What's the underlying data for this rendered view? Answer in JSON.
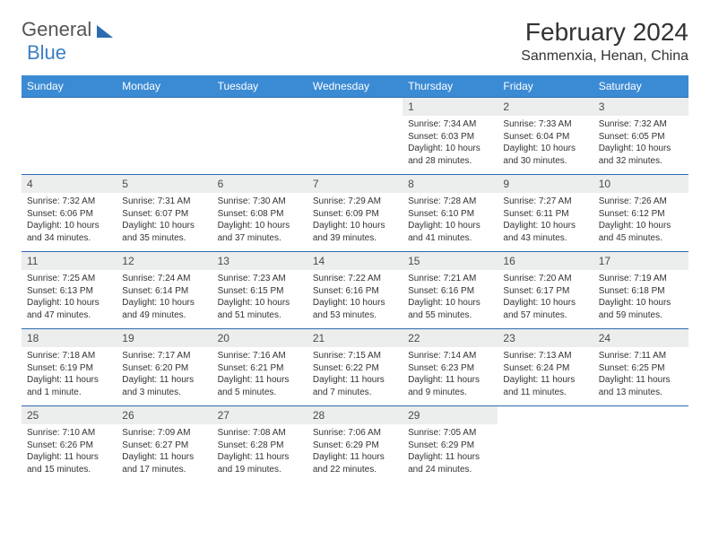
{
  "brand": {
    "part1": "General",
    "part2": "Blue"
  },
  "title": "February 2024",
  "location": "Sanmenxia, Henan, China",
  "colors": {
    "header_bg": "#3b8bd4",
    "header_text": "#ffffff",
    "daynum_bg": "#eceded",
    "border": "#2b6bb0",
    "text": "#333333"
  },
  "days_of_week": [
    "Sunday",
    "Monday",
    "Tuesday",
    "Wednesday",
    "Thursday",
    "Friday",
    "Saturday"
  ],
  "weeks": [
    {
      "nums": [
        "",
        "",
        "",
        "",
        "1",
        "2",
        "3"
      ],
      "details": [
        "",
        "",
        "",
        "",
        "Sunrise: 7:34 AM\nSunset: 6:03 PM\nDaylight: 10 hours and 28 minutes.",
        "Sunrise: 7:33 AM\nSunset: 6:04 PM\nDaylight: 10 hours and 30 minutes.",
        "Sunrise: 7:32 AM\nSunset: 6:05 PM\nDaylight: 10 hours and 32 minutes."
      ]
    },
    {
      "nums": [
        "4",
        "5",
        "6",
        "7",
        "8",
        "9",
        "10"
      ],
      "details": [
        "Sunrise: 7:32 AM\nSunset: 6:06 PM\nDaylight: 10 hours and 34 minutes.",
        "Sunrise: 7:31 AM\nSunset: 6:07 PM\nDaylight: 10 hours and 35 minutes.",
        "Sunrise: 7:30 AM\nSunset: 6:08 PM\nDaylight: 10 hours and 37 minutes.",
        "Sunrise: 7:29 AM\nSunset: 6:09 PM\nDaylight: 10 hours and 39 minutes.",
        "Sunrise: 7:28 AM\nSunset: 6:10 PM\nDaylight: 10 hours and 41 minutes.",
        "Sunrise: 7:27 AM\nSunset: 6:11 PM\nDaylight: 10 hours and 43 minutes.",
        "Sunrise: 7:26 AM\nSunset: 6:12 PM\nDaylight: 10 hours and 45 minutes."
      ]
    },
    {
      "nums": [
        "11",
        "12",
        "13",
        "14",
        "15",
        "16",
        "17"
      ],
      "details": [
        "Sunrise: 7:25 AM\nSunset: 6:13 PM\nDaylight: 10 hours and 47 minutes.",
        "Sunrise: 7:24 AM\nSunset: 6:14 PM\nDaylight: 10 hours and 49 minutes.",
        "Sunrise: 7:23 AM\nSunset: 6:15 PM\nDaylight: 10 hours and 51 minutes.",
        "Sunrise: 7:22 AM\nSunset: 6:16 PM\nDaylight: 10 hours and 53 minutes.",
        "Sunrise: 7:21 AM\nSunset: 6:16 PM\nDaylight: 10 hours and 55 minutes.",
        "Sunrise: 7:20 AM\nSunset: 6:17 PM\nDaylight: 10 hours and 57 minutes.",
        "Sunrise: 7:19 AM\nSunset: 6:18 PM\nDaylight: 10 hours and 59 minutes."
      ]
    },
    {
      "nums": [
        "18",
        "19",
        "20",
        "21",
        "22",
        "23",
        "24"
      ],
      "details": [
        "Sunrise: 7:18 AM\nSunset: 6:19 PM\nDaylight: 11 hours and 1 minute.",
        "Sunrise: 7:17 AM\nSunset: 6:20 PM\nDaylight: 11 hours and 3 minutes.",
        "Sunrise: 7:16 AM\nSunset: 6:21 PM\nDaylight: 11 hours and 5 minutes.",
        "Sunrise: 7:15 AM\nSunset: 6:22 PM\nDaylight: 11 hours and 7 minutes.",
        "Sunrise: 7:14 AM\nSunset: 6:23 PM\nDaylight: 11 hours and 9 minutes.",
        "Sunrise: 7:13 AM\nSunset: 6:24 PM\nDaylight: 11 hours and 11 minutes.",
        "Sunrise: 7:11 AM\nSunset: 6:25 PM\nDaylight: 11 hours and 13 minutes."
      ]
    },
    {
      "nums": [
        "25",
        "26",
        "27",
        "28",
        "29",
        "",
        ""
      ],
      "details": [
        "Sunrise: 7:10 AM\nSunset: 6:26 PM\nDaylight: 11 hours and 15 minutes.",
        "Sunrise: 7:09 AM\nSunset: 6:27 PM\nDaylight: 11 hours and 17 minutes.",
        "Sunrise: 7:08 AM\nSunset: 6:28 PM\nDaylight: 11 hours and 19 minutes.",
        "Sunrise: 7:06 AM\nSunset: 6:29 PM\nDaylight: 11 hours and 22 minutes.",
        "Sunrise: 7:05 AM\nSunset: 6:29 PM\nDaylight: 11 hours and 24 minutes.",
        "",
        ""
      ]
    }
  ]
}
